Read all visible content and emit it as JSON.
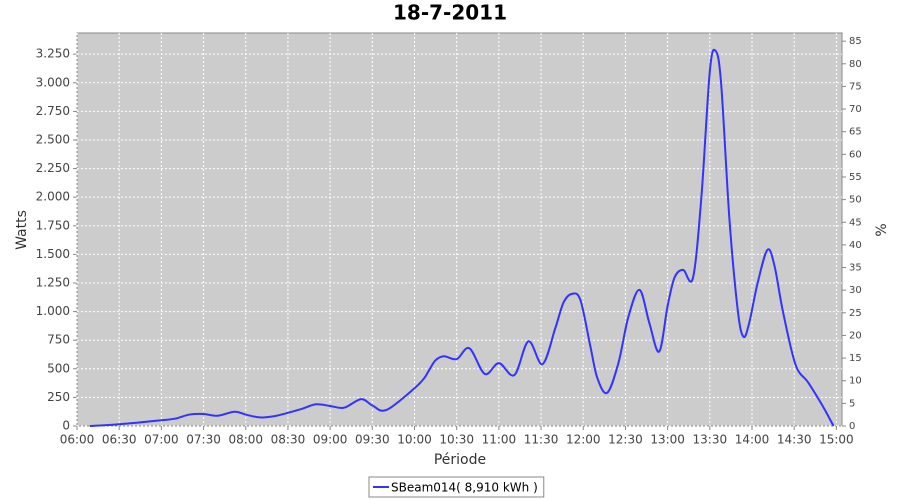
{
  "chart_data": {
    "type": "line",
    "title": "18-7-2011",
    "x_label": "Période",
    "y_label": "Watts",
    "y2_label": "%",
    "x": [
      "06:09",
      "06:30",
      "07:00",
      "07:10",
      "07:20",
      "07:30",
      "07:40",
      "07:52",
      "08:00",
      "08:10",
      "08:20",
      "08:30",
      "08:40",
      "08:50",
      "09:00",
      "09:10",
      "09:22",
      "09:30",
      "09:40",
      "10:00",
      "10:07",
      "10:10",
      "10:15",
      "10:21",
      "10:30",
      "10:39",
      "10:50",
      "11:00",
      "11:11",
      "11:21",
      "11:31",
      "11:40",
      "11:46",
      "11:52",
      "11:58",
      "12:05",
      "12:10",
      "12:17",
      "12:25",
      "12:32",
      "12:40",
      "12:47",
      "12:54",
      "13:00",
      "13:05",
      "13:11",
      "13:18",
      "13:24",
      "13:30",
      "13:34",
      "13:38",
      "13:44",
      "13:50",
      "13:54",
      "13:58",
      "14:04",
      "14:11",
      "14:16",
      "14:22",
      "14:31",
      "14:40",
      "14:50",
      "14:58"
    ],
    "series": [
      {
        "name": "SBeam014( 8,910 kWh )",
        "color": "#3333ff",
        "values": [
          0,
          15,
          50,
          65,
          100,
          105,
          90,
          125,
          100,
          75,
          85,
          115,
          150,
          190,
          175,
          160,
          235,
          180,
          140,
          330,
          420,
          480,
          575,
          610,
          585,
          680,
          455,
          550,
          445,
          740,
          540,
          850,
          1080,
          1155,
          1100,
          700,
          420,
          290,
          550,
          950,
          1190,
          900,
          650,
          1050,
          1300,
          1365,
          1295,
          2000,
          3100,
          3280,
          3000,
          1800,
          1000,
          780,
          900,
          1250,
          1540,
          1400,
          1000,
          535,
          380,
          180,
          0
        ]
      }
    ],
    "xlim": [
      "06:00",
      "15:04"
    ],
    "xticks": [
      "06:00",
      "06:30",
      "07:00",
      "07:30",
      "08:00",
      "08:30",
      "09:00",
      "09:30",
      "10:00",
      "10:30",
      "11:00",
      "11:30",
      "12:00",
      "12:30",
      "13:00",
      "13:30",
      "14:00",
      "14:30",
      "15:00"
    ],
    "ylim": [
      0,
      3435
    ],
    "yticks": [
      0,
      250,
      500,
      750,
      {
        "value": 1000,
        "label": "1.000"
      },
      {
        "value": 1250,
        "label": "1.250"
      },
      {
        "value": 1500,
        "label": "1.500"
      },
      {
        "value": 1750,
        "label": "1.750"
      },
      {
        "value": 2000,
        "label": "2.000"
      },
      {
        "value": 2250,
        "label": "2.250"
      },
      {
        "value": 2500,
        "label": "2.500"
      },
      {
        "value": 2750,
        "label": "2.750"
      },
      {
        "value": 3000,
        "label": "3.000"
      },
      {
        "value": 3250,
        "label": "3.250"
      }
    ],
    "y2lim": [
      0,
      86.8
    ],
    "y2ticks": [
      0,
      5,
      10,
      15,
      20,
      25,
      30,
      35,
      40,
      45,
      50,
      55,
      60,
      65,
      70,
      75,
      80,
      85
    ],
    "grid": true,
    "legend": "bottom"
  }
}
